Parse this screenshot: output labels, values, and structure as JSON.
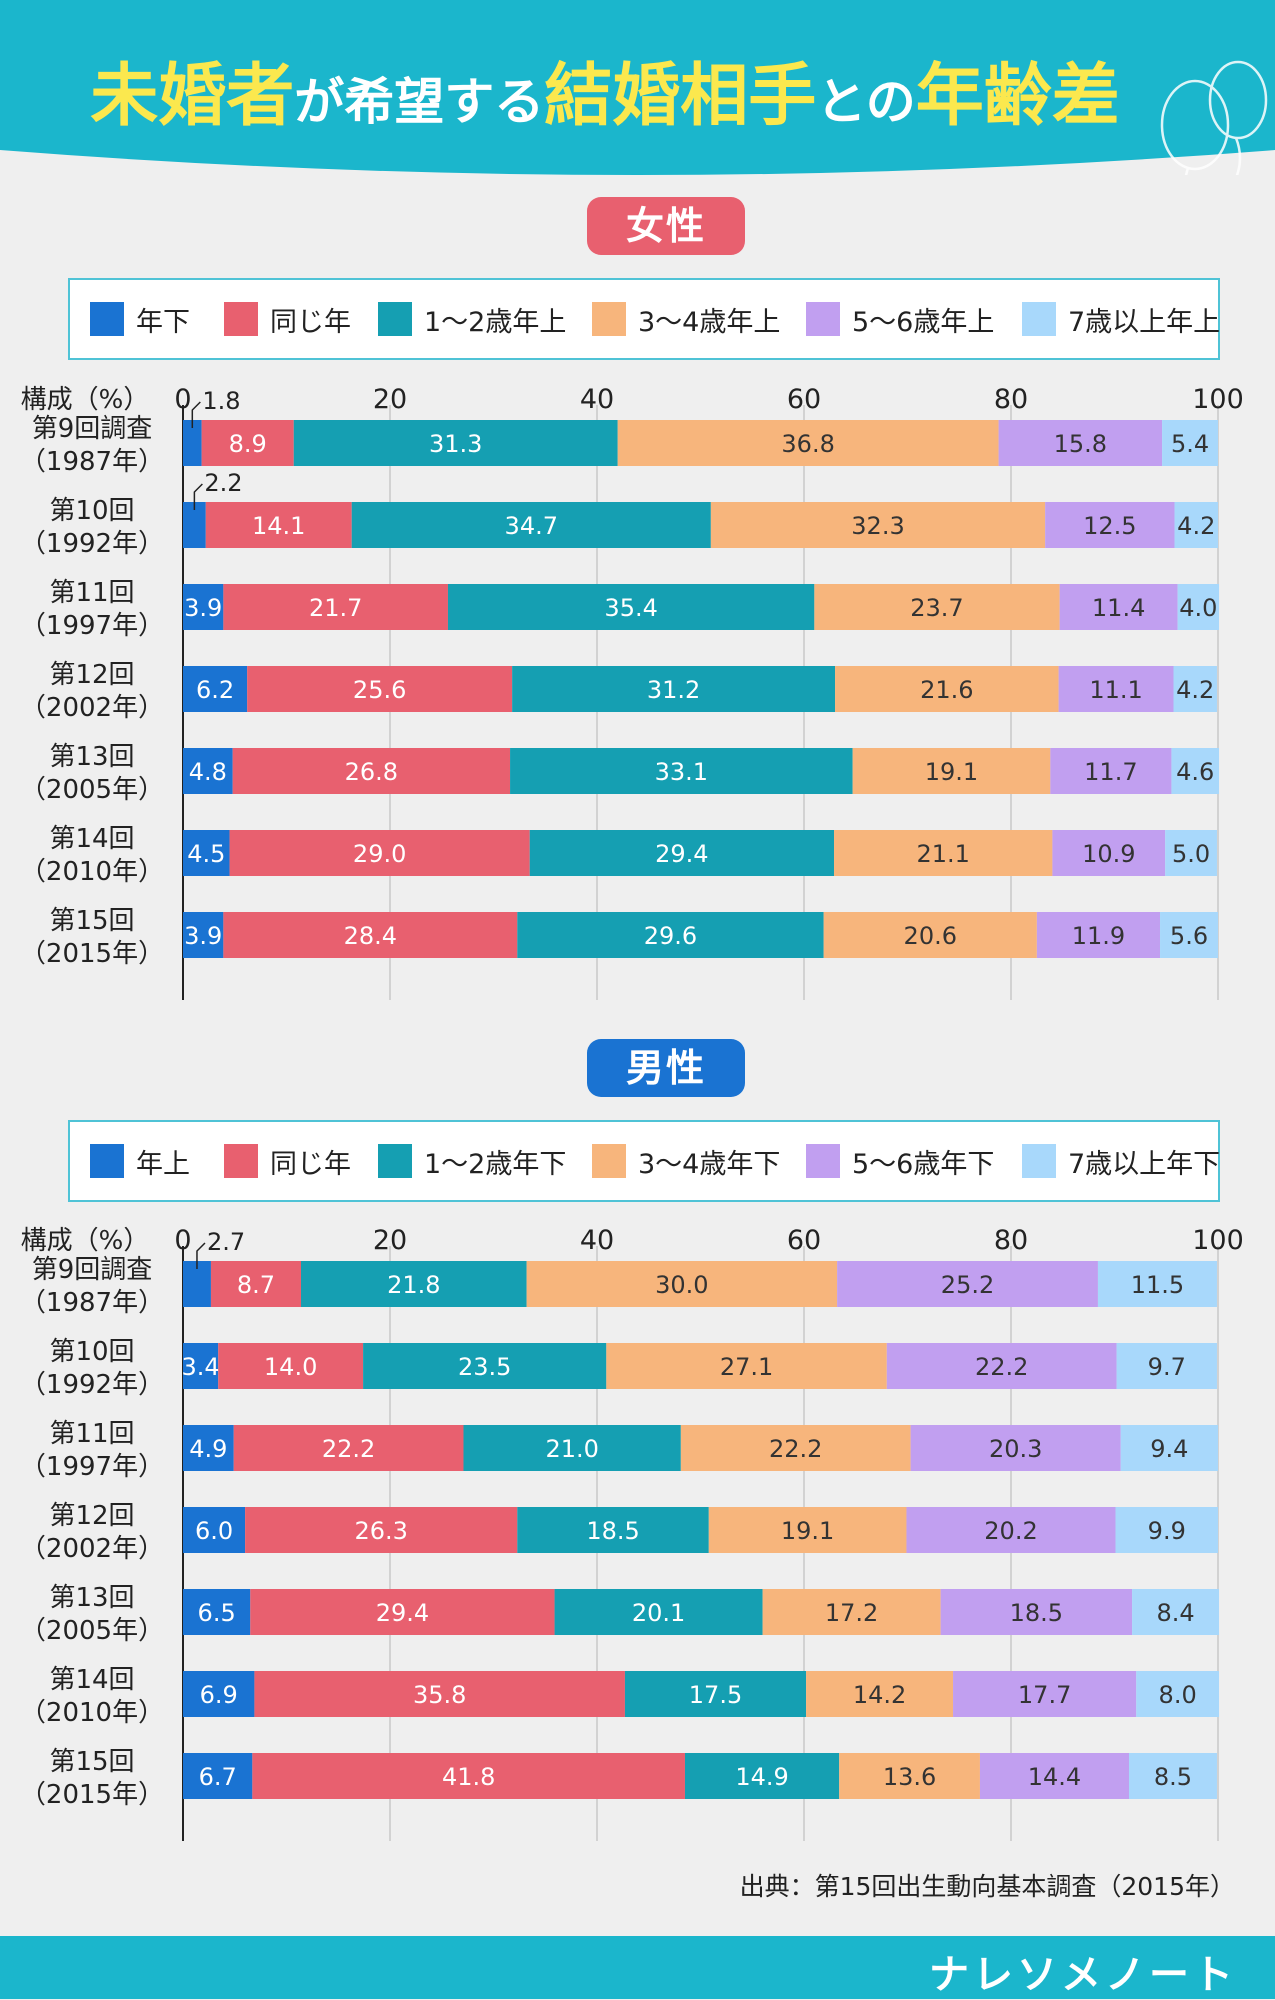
{
  "title": {
    "parts": [
      {
        "text": "未婚者",
        "style": "big"
      },
      {
        "text": "が希望する",
        "style": "small"
      },
      {
        "text": "結婚相手",
        "style": "big"
      },
      {
        "text": "との",
        "style": "small"
      },
      {
        "text": "年齢差",
        "style": "big"
      }
    ]
  },
  "colors": {
    "header_bg": "#1bb6cc",
    "title_highlight": "#fbe84e",
    "female_pill": "#e8606f",
    "male_pill": "#1a73d2",
    "legend_border": "#4fc3d6",
    "series": [
      "#1a73d2",
      "#e8606f",
      "#159fb2",
      "#f7b57c",
      "#c19ff0",
      "#a8d8fb"
    ]
  },
  "source": "出典：第15回出生動向基本調査（2015年）",
  "brand": "ナレソメノート",
  "icons": [
    "balloon-icon"
  ],
  "chart_data": [
    {
      "type": "bar",
      "orientation": "horizontal",
      "stacked": true,
      "title": "女性",
      "xlabel": "構成（%）",
      "xlim": [
        0,
        100
      ],
      "x_ticks": [
        "0",
        "20",
        "40",
        "60",
        "80",
        "100"
      ],
      "grid": true,
      "legend_position": "top",
      "categories": [
        [
          "第9回調査",
          "（1987年）"
        ],
        [
          "第10回",
          "（1992年）"
        ],
        [
          "第11回",
          "（1997年）"
        ],
        [
          "第12回",
          "（2002年）"
        ],
        [
          "第13回",
          "（2005年）"
        ],
        [
          "第14回",
          "（2010年）"
        ],
        [
          "第15回",
          "（2015年）"
        ]
      ],
      "series": [
        {
          "name": "年下",
          "values": [
            1.8,
            2.2,
            3.9,
            6.2,
            4.8,
            4.5,
            3.9
          ]
        },
        {
          "name": "同じ年",
          "values": [
            8.9,
            14.1,
            21.7,
            25.6,
            26.8,
            29.0,
            28.4
          ]
        },
        {
          "name": "1～2歳年上",
          "values": [
            31.3,
            34.7,
            35.4,
            31.2,
            33.1,
            29.4,
            29.6
          ]
        },
        {
          "name": "3～4歳年上",
          "values": [
            36.8,
            32.3,
            23.7,
            21.6,
            19.1,
            21.1,
            20.6
          ]
        },
        {
          "name": "5～6歳年上",
          "values": [
            15.8,
            12.5,
            11.4,
            11.1,
            11.7,
            10.9,
            11.9
          ]
        },
        {
          "name": "7歳以上年上",
          "values": [
            5.4,
            4.2,
            4.0,
            4.2,
            4.6,
            5.0,
            5.6
          ]
        }
      ],
      "labels": [
        [
          "1.8",
          "8.9",
          "31.3",
          "36.8",
          "15.8",
          "5.4"
        ],
        [
          "2.2",
          "14.1",
          "34.7",
          "32.3",
          "12.5",
          "4.2"
        ],
        [
          "3.9",
          "21.7",
          "35.4",
          "23.7",
          "11.4",
          "4.0"
        ],
        [
          "6.2",
          "25.6",
          "31.2",
          "21.6",
          "11.1",
          "4.2"
        ],
        [
          "4.8",
          "26.8",
          "33.1",
          "19.1",
          "11.7",
          "4.6"
        ],
        [
          "4.5",
          "29.0",
          "29.4",
          "21.1",
          "10.9",
          "5.0"
        ],
        [
          "3.9",
          "28.4",
          "29.6",
          "20.6",
          "11.9",
          "5.6"
        ]
      ]
    },
    {
      "type": "bar",
      "orientation": "horizontal",
      "stacked": true,
      "title": "男性",
      "xlabel": "構成（%）",
      "xlim": [
        0,
        100
      ],
      "x_ticks": [
        "0",
        "20",
        "40",
        "60",
        "80",
        "100"
      ],
      "grid": true,
      "legend_position": "top",
      "categories": [
        [
          "第9回調査",
          "（1987年）"
        ],
        [
          "第10回",
          "（1992年）"
        ],
        [
          "第11回",
          "（1997年）"
        ],
        [
          "第12回",
          "（2002年）"
        ],
        [
          "第13回",
          "（2005年）"
        ],
        [
          "第14回",
          "（2010年）"
        ],
        [
          "第15回",
          "（2015年）"
        ]
      ],
      "series": [
        {
          "name": "年上",
          "values": [
            2.7,
            3.4,
            4.9,
            6.0,
            6.5,
            6.9,
            6.7
          ]
        },
        {
          "name": "同じ年",
          "values": [
            8.7,
            14.0,
            22.2,
            26.3,
            29.4,
            35.8,
            41.8
          ]
        },
        {
          "name": "1～2歳年下",
          "values": [
            21.8,
            23.5,
            21.0,
            18.5,
            20.1,
            17.5,
            14.9
          ]
        },
        {
          "name": "3～4歳年下",
          "values": [
            30.0,
            27.1,
            22.2,
            19.1,
            17.2,
            14.2,
            13.6
          ]
        },
        {
          "name": "5～6歳年下",
          "values": [
            25.2,
            22.2,
            20.3,
            20.2,
            18.5,
            17.7,
            14.4
          ]
        },
        {
          "name": "7歳以上年下",
          "values": [
            11.5,
            9.7,
            9.4,
            9.9,
            8.4,
            8.0,
            8.5
          ]
        }
      ],
      "labels": [
        [
          "2.7",
          "8.7",
          "21.8",
          "30.0",
          "25.2",
          "11.5"
        ],
        [
          "3.4",
          "14.0",
          "23.5",
          "27.1",
          "22.2",
          "9.7"
        ],
        [
          "4.9",
          "22.2",
          "21.0",
          "22.2",
          "20.3",
          "9.4"
        ],
        [
          "6.0",
          "26.3",
          "18.5",
          "19.1",
          "20.2",
          "9.9"
        ],
        [
          "6.5",
          "29.4",
          "20.1",
          "17.2",
          "18.5",
          "8.4"
        ],
        [
          "6.9",
          "35.8",
          "17.5",
          "14.2",
          "17.7",
          "8.0"
        ],
        [
          "6.7",
          "41.8",
          "14.9",
          "13.6",
          "14.4",
          "8.5"
        ]
      ]
    }
  ]
}
